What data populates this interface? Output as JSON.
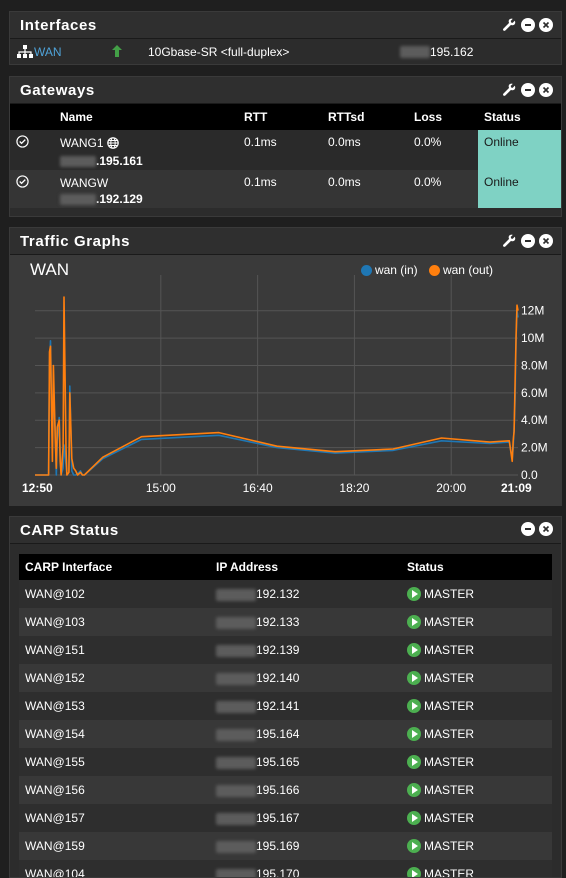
{
  "colors": {
    "accent_green": "#4caf50",
    "online": "#7fd2c4",
    "wan_in": "#1f77b4",
    "wan_out": "#ff7f0e"
  },
  "interfaces": {
    "title": "Interfaces",
    "rows": [
      {
        "name": "WAN",
        "icon": "network-icon",
        "status_icon": "arrow-up-icon",
        "media": "10Gbase-SR <full-duplex>",
        "ip_visible": "195.162"
      }
    ]
  },
  "gateways": {
    "title": "Gateways",
    "headers": [
      "Name",
      "RTT",
      "RTTsd",
      "Loss",
      "Status"
    ],
    "rows": [
      {
        "name": "WANG1",
        "ip_visible": ".195.161",
        "rtt": "0.1ms",
        "rttsd": "0.0ms",
        "loss": "0.0%",
        "status": "Online"
      },
      {
        "name": "WANGW",
        "ip_visible": ".192.129",
        "rtt": "0.1ms",
        "rttsd": "0.0ms",
        "loss": "0.0%",
        "status": "Online"
      }
    ]
  },
  "traffic": {
    "title": "Traffic Graphs",
    "graph_title": "WAN",
    "legend": [
      {
        "label": "wan (in)"
      },
      {
        "label": "wan (out)"
      }
    ]
  },
  "chart_data": {
    "type": "line",
    "title": "WAN",
    "x_ticks": [
      "12:50",
      "15:00",
      "16:40",
      "18:20",
      "20:00",
      "21:09"
    ],
    "y_ticks": [
      "0.0",
      "2.0M",
      "4.0M",
      "6.0M",
      "8.0M",
      "10M",
      "12M"
    ],
    "ylim": [
      0,
      13000000
    ],
    "grid": true,
    "legend_position": "top-right",
    "series": [
      {
        "name": "wan (in)",
        "color": "#1f77b4",
        "x": [
          "12:50",
          "13:04",
          "13:05",
          "13:06",
          "13:08",
          "13:09",
          "13:11",
          "13:12",
          "13:13",
          "13:15",
          "13:16",
          "13:17",
          "13:19",
          "13:20",
          "13:22",
          "13:23",
          "13:25",
          "13:26",
          "13:28",
          "13:30",
          "13:32",
          "13:34",
          "13:37",
          "13:39",
          "13:41",
          "14:00",
          "14:40",
          "16:00",
          "17:00",
          "18:00",
          "19:00",
          "19:50",
          "20:40",
          "21:00",
          "21:03",
          "21:04",
          "21:05",
          "21:06",
          "21:07",
          "21:08",
          "21:09"
        ],
        "values": [
          0,
          0,
          8000000,
          9800000,
          2000000,
          6000000,
          3200000,
          0,
          2500000,
          4200000,
          1500000,
          0,
          500000,
          2200000,
          800000,
          0,
          200000,
          6500000,
          300000,
          0,
          0,
          100000,
          300000,
          0,
          0,
          1200000,
          2600000,
          2900000,
          2000000,
          1600000,
          1800000,
          2500000,
          2300000,
          2400000,
          1200000,
          2000000,
          3500000,
          5500000,
          10000000,
          12000000,
          11500000
        ]
      },
      {
        "name": "wan (out)",
        "color": "#ff7f0e",
        "x": [
          "12:50",
          "13:04",
          "13:05",
          "13:06",
          "13:08",
          "13:09",
          "13:11",
          "13:12",
          "13:13",
          "13:15",
          "13:16",
          "13:17",
          "13:19",
          "13:20",
          "13:22",
          "13:23",
          "13:25",
          "13:26",
          "13:28",
          "13:30",
          "13:32",
          "13:34",
          "13:37",
          "13:39",
          "13:41",
          "14:00",
          "14:40",
          "16:00",
          "17:00",
          "18:00",
          "19:00",
          "19:50",
          "20:40",
          "21:00",
          "21:03",
          "21:04",
          "21:05",
          "21:06",
          "21:07",
          "21:08",
          "21:09"
        ],
        "values": [
          0,
          0,
          9000000,
          9400000,
          1000000,
          8000000,
          2500000,
          500000,
          3500000,
          4000000,
          1000000,
          0,
          2000000,
          13000000,
          2000000,
          0,
          200000,
          6000000,
          1200000,
          500000,
          300000,
          0,
          200000,
          0,
          0,
          1300000,
          2800000,
          3100000,
          2100000,
          1700000,
          1900000,
          2700000,
          2400000,
          2500000,
          1000000,
          2500000,
          3200000,
          6800000,
          10200000,
          12400000,
          12000000
        ]
      }
    ]
  },
  "carp": {
    "title": "CARP Status",
    "headers": [
      "CARP Interface",
      "IP Address",
      "Status"
    ],
    "rows": [
      {
        "iface": "WAN@102",
        "ip_visible": "192.132",
        "status": "MASTER"
      },
      {
        "iface": "WAN@103",
        "ip_visible": "192.133",
        "status": "MASTER"
      },
      {
        "iface": "WAN@151",
        "ip_visible": "192.139",
        "status": "MASTER"
      },
      {
        "iface": "WAN@152",
        "ip_visible": "192.140",
        "status": "MASTER"
      },
      {
        "iface": "WAN@153",
        "ip_visible": "192.141",
        "status": "MASTER"
      },
      {
        "iface": "WAN@154",
        "ip_visible": "195.164",
        "status": "MASTER"
      },
      {
        "iface": "WAN@155",
        "ip_visible": "195.165",
        "status": "MASTER"
      },
      {
        "iface": "WAN@156",
        "ip_visible": "195.166",
        "status": "MASTER"
      },
      {
        "iface": "WAN@157",
        "ip_visible": "195.167",
        "status": "MASTER"
      },
      {
        "iface": "WAN@159",
        "ip_visible": "195.169",
        "status": "MASTER"
      },
      {
        "iface": "WAN@104",
        "ip_visible": "195.170",
        "status": "MASTER"
      }
    ]
  }
}
